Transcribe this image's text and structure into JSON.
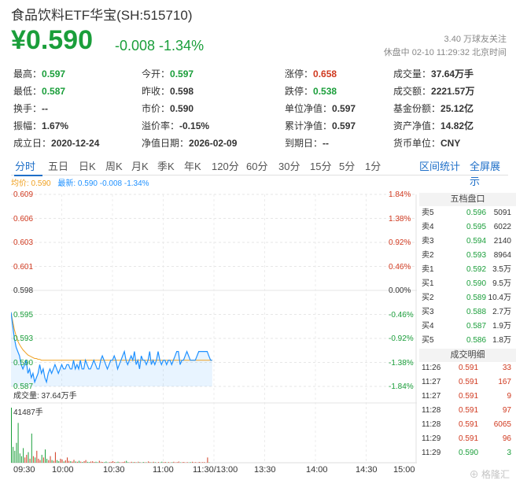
{
  "header": {
    "title": "食品饮料ETF华宝(SH:515710)",
    "price": "¥0.590",
    "change": "-0.008  -1.34%",
    "followers": "3.40 万球友关注",
    "status": "休盘中 02-10 11:29:32 北京时间"
  },
  "quote": [
    {
      "label": "最高：",
      "value": "0.597",
      "color": "green"
    },
    {
      "label": "今开：",
      "value": "0.597",
      "color": "green"
    },
    {
      "label": "涨停：",
      "value": "0.658",
      "color": "red"
    },
    {
      "label": "成交量：",
      "value": "37.64万手",
      "color": ""
    },
    {
      "label": "最低：",
      "value": "0.587",
      "color": "green"
    },
    {
      "label": "昨收：",
      "value": "0.598",
      "color": ""
    },
    {
      "label": "跌停：",
      "value": "0.538",
      "color": "green"
    },
    {
      "label": "成交额：",
      "value": "2221.57万",
      "color": ""
    },
    {
      "label": "换手：",
      "value": "--",
      "color": ""
    },
    {
      "label": "市价：",
      "value": "0.590",
      "color": ""
    },
    {
      "label": "单位净值：",
      "value": "0.597",
      "color": ""
    },
    {
      "label": "基金份额：",
      "value": "25.12亿",
      "color": ""
    },
    {
      "label": "振幅：",
      "value": "1.67%",
      "color": ""
    },
    {
      "label": "溢价率：",
      "value": "-0.15%",
      "color": ""
    },
    {
      "label": "累计净值：",
      "value": "0.597",
      "color": ""
    },
    {
      "label": "资产净值：",
      "value": "14.82亿",
      "color": ""
    },
    {
      "label": "成立日：",
      "value": "2020-12-24",
      "color": ""
    },
    {
      "label": "净值日期：",
      "value": "2026-02-09",
      "color": ""
    },
    {
      "label": "到期日：",
      "value": "--",
      "color": ""
    },
    {
      "label": "货币单位：",
      "value": "CNY",
      "color": ""
    }
  ],
  "tabs": [
    "分时",
    "五日",
    "日K",
    "周K",
    "月K",
    "季K",
    "年K",
    "120分",
    "60分",
    "30分",
    "15分",
    "5分",
    "1分"
  ],
  "right_tabs": [
    "区间统计",
    "全屏展示"
  ],
  "legend": {
    "avg": "均价: 0.590",
    "latest": "最新: 0.590  -0.008  -1.34%"
  },
  "y_left": [
    "0.609",
    "0.606",
    "0.603",
    "0.601",
    "0.598",
    "0.595",
    "0.593",
    "0.590",
    "0.587"
  ],
  "y_right": [
    "1.84%",
    "1.38%",
    "0.92%",
    "0.46%",
    "0.00%",
    "-0.46%",
    "-0.92%",
    "-1.38%",
    "-1.84%"
  ],
  "volume": {
    "label": "成交量: 37.64万手",
    "max": "41487手"
  },
  "x_labels": [
    "09:30",
    "10:00",
    "10:30",
    "11:00",
    "11:30/13:00",
    "13:30",
    "14:00",
    "14:30",
    "15:00"
  ],
  "orderbook": {
    "title": "五档盘口",
    "rows": [
      {
        "label": "卖5",
        "price": "0.596",
        "vol": "5091"
      },
      {
        "label": "卖4",
        "price": "0.595",
        "vol": "6022"
      },
      {
        "label": "卖3",
        "price": "0.594",
        "vol": "2140"
      },
      {
        "label": "卖2",
        "price": "0.593",
        "vol": "8964"
      },
      {
        "label": "卖1",
        "price": "0.592",
        "vol": "3.5万"
      },
      {
        "label": "买1",
        "price": "0.590",
        "vol": "9.5万"
      },
      {
        "label": "买2",
        "price": "0.589",
        "vol": "10.4万"
      },
      {
        "label": "买3",
        "price": "0.588",
        "vol": "2.7万"
      },
      {
        "label": "买4",
        "price": "0.587",
        "vol": "1.9万"
      },
      {
        "label": "买5",
        "price": "0.586",
        "vol": "1.8万"
      }
    ]
  },
  "trades": {
    "title": "成交明细",
    "rows": [
      {
        "time": "11:26",
        "price": "0.591",
        "vol": "33",
        "dir": "red"
      },
      {
        "time": "11:27",
        "price": "0.591",
        "vol": "167",
        "dir": "red"
      },
      {
        "time": "11:27",
        "price": "0.591",
        "vol": "9",
        "dir": "red"
      },
      {
        "time": "11:28",
        "price": "0.591",
        "vol": "97",
        "dir": "red"
      },
      {
        "time": "11:28",
        "price": "0.591",
        "vol": "6065",
        "dir": "red"
      },
      {
        "time": "11:29",
        "price": "0.591",
        "vol": "96",
        "dir": "red"
      },
      {
        "time": "11:29",
        "price": "0.590",
        "vol": "3",
        "dir": "green"
      }
    ]
  },
  "colors": {
    "up": "#d0391f",
    "down": "#1a9e3a",
    "accent": "#1e6fc8",
    "price_line": "#1e90ff",
    "avg_line": "#f0a020"
  },
  "watermark": "格隆汇",
  "chart_data": {
    "type": "line",
    "prev_close": 0.598,
    "ylim": [
      0.587,
      0.609
    ],
    "price": [
      0.5955,
      0.594,
      0.5925,
      0.5915,
      0.591,
      0.5905,
      0.5895,
      0.589,
      0.5895,
      0.59,
      0.5885,
      0.589,
      0.588,
      0.5885,
      0.5875,
      0.588,
      0.5885,
      0.5895,
      0.5885,
      0.589,
      0.588,
      0.5875,
      0.5885,
      0.589,
      0.5885,
      0.589,
      0.5895,
      0.589,
      0.5885,
      0.589,
      0.5895,
      0.589,
      0.589,
      0.5895,
      0.5895,
      0.589,
      0.589,
      0.59,
      0.589,
      0.5895,
      0.589,
      0.59,
      0.589,
      0.589,
      0.59,
      0.5895,
      0.589,
      0.589,
      0.5895,
      0.59,
      0.5895,
      0.589,
      0.589,
      0.59,
      0.5905,
      0.59,
      0.5895,
      0.589,
      0.5895,
      0.59,
      0.59,
      0.5905,
      0.59,
      0.589,
      0.5895,
      0.59,
      0.5905,
      0.591,
      0.59,
      0.5895,
      0.59,
      0.5905,
      0.59,
      0.591,
      0.5895,
      0.59,
      0.589,
      0.5905,
      0.59,
      0.59,
      0.5895,
      0.59,
      0.591,
      0.5895,
      0.59,
      0.5895,
      0.59,
      0.591,
      0.59,
      0.5895,
      0.59,
      0.59,
      0.5895,
      0.59,
      0.59,
      0.5895,
      0.59,
      0.5905,
      0.591,
      0.591,
      0.5895,
      0.59,
      0.59,
      0.5905,
      0.591,
      0.5905,
      0.59,
      0.59,
      0.59,
      0.59,
      0.5905,
      0.591,
      0.591,
      0.591,
      0.591,
      0.591,
      0.591,
      0.5905,
      0.59,
      0.59
    ],
    "avg": [
      0.5955,
      0.5945,
      0.5935,
      0.5928,
      0.5922,
      0.5918,
      0.5915,
      0.5912,
      0.591,
      0.5908,
      0.5906,
      0.5905,
      0.5904,
      0.5903,
      0.5902,
      0.5902,
      0.5901,
      0.5901,
      0.59,
      0.59,
      0.59,
      0.59,
      0.59,
      0.59,
      0.59,
      0.59,
      0.59,
      0.59,
      0.59,
      0.59,
      0.59,
      0.59,
      0.59,
      0.59,
      0.59,
      0.59,
      0.59,
      0.59,
      0.59,
      0.59,
      0.59,
      0.59,
      0.59,
      0.59,
      0.59,
      0.59,
      0.59,
      0.59,
      0.59,
      0.59,
      0.59,
      0.59,
      0.59,
      0.59,
      0.59,
      0.59,
      0.59,
      0.59,
      0.59,
      0.59,
      0.59,
      0.59,
      0.59,
      0.59,
      0.59,
      0.59,
      0.59,
      0.59,
      0.59,
      0.59,
      0.59,
      0.59,
      0.59,
      0.59,
      0.59,
      0.59,
      0.59,
      0.59,
      0.59,
      0.59,
      0.59,
      0.59,
      0.59,
      0.59,
      0.59,
      0.59,
      0.59,
      0.59,
      0.59,
      0.59,
      0.59,
      0.59,
      0.59,
      0.59,
      0.59,
      0.59,
      0.59,
      0.59,
      0.59,
      0.59,
      0.59,
      0.59,
      0.59,
      0.59,
      0.59,
      0.59,
      0.59,
      0.59,
      0.59,
      0.59,
      0.59,
      0.59,
      0.59,
      0.59,
      0.59,
      0.59,
      0.59,
      0.59,
      0.59,
      0.59
    ],
    "volume": [
      41487,
      12000,
      9000,
      15000,
      30000,
      7000,
      5000,
      11000,
      4000,
      6000,
      8000,
      3000,
      22000,
      5000,
      4000,
      9000,
      3000,
      2000,
      6000,
      4000,
      10000,
      3000,
      2000,
      5000,
      2000,
      1500,
      8000,
      2000,
      1200,
      3000,
      2500,
      1000,
      1800,
      4000,
      1500,
      1200,
      900,
      2200,
      1000,
      800,
      1500,
      900,
      600,
      1200,
      2000,
      700,
      500,
      900,
      1100,
      600,
      800,
      400,
      1500,
      700,
      600,
      500,
      900,
      300,
      500,
      700,
      1200,
      600,
      400,
      800,
      500,
      300,
      600,
      900,
      1400,
      500,
      300,
      700,
      400,
      600,
      300,
      800,
      500,
      200,
      600,
      400,
      300,
      1000,
      500,
      300,
      700,
      400,
      200,
      500,
      300,
      800,
      400,
      600,
      300,
      500,
      200,
      400,
      700,
      300,
      500,
      900,
      300,
      400,
      600,
      200,
      500,
      300,
      400,
      700,
      300,
      500,
      200,
      600,
      300,
      400,
      500,
      200,
      4000,
      300
    ]
  }
}
